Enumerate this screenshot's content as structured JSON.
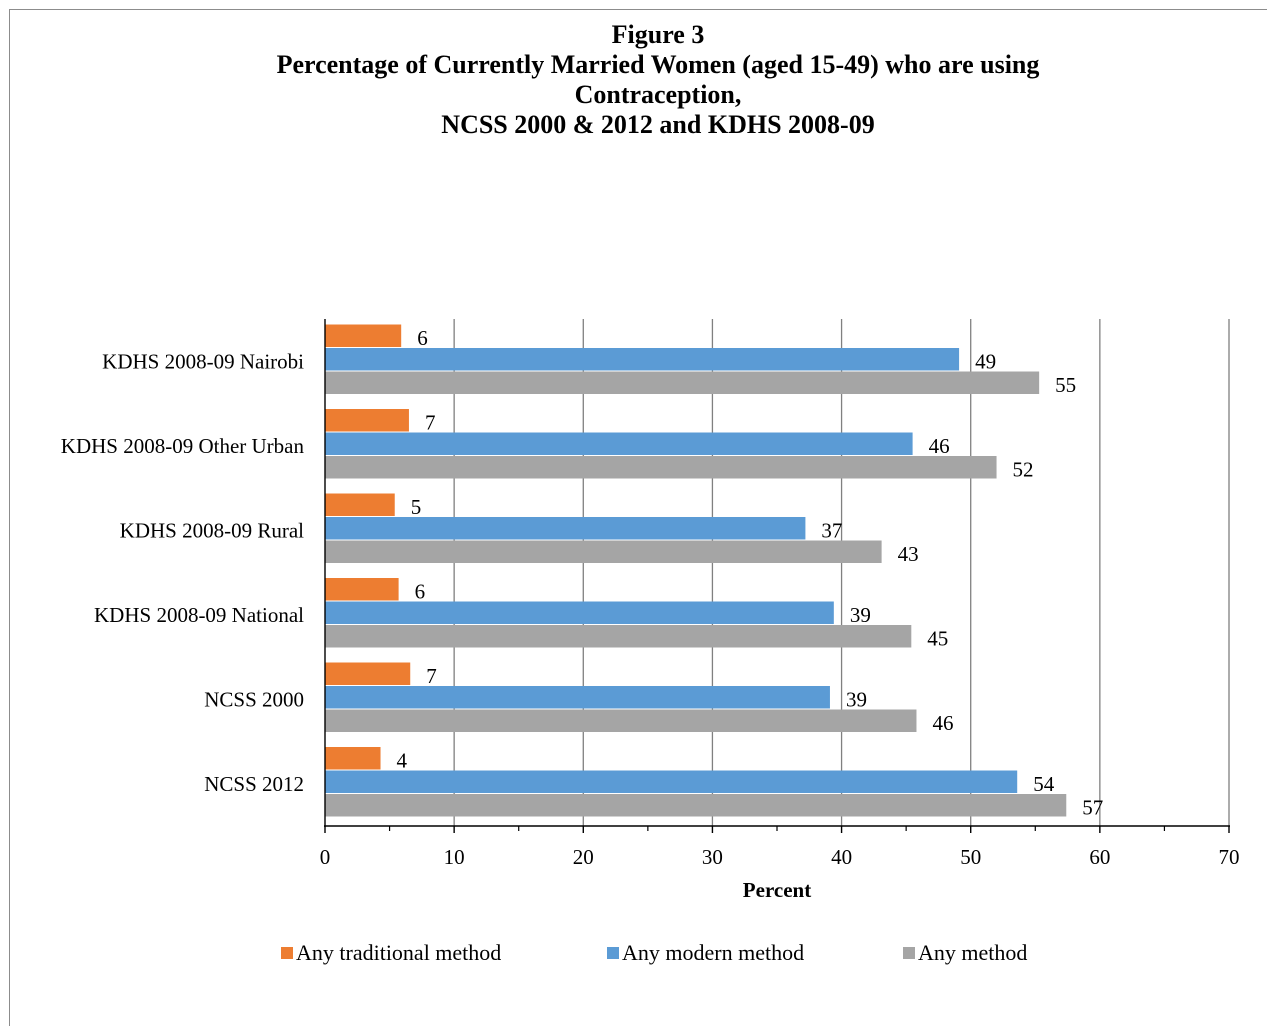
{
  "chart_data": {
    "type": "bar",
    "orientation": "horizontal",
    "title_lines": [
      "Figure 3",
      "Percentage of Currently Married Women (aged 15-49) who are using",
      "Contraception,",
      "NCSS 2000 & 2012 and KDHS 2008-09"
    ],
    "xlabel": "Percent",
    "ylabel": "",
    "xlim": [
      0,
      70
    ],
    "x_ticks": [
      0,
      10,
      20,
      30,
      40,
      50,
      60,
      70
    ],
    "grid": true,
    "legend_position": "bottom",
    "categories": [
      "KDHS 2008-09 Nairobi",
      "KDHS 2008-09 Other Urban",
      "KDHS 2008-09 Rural",
      "KDHS 2008-09 National",
      "NCSS 2000",
      "NCSS 2012"
    ],
    "series": [
      {
        "name": "Any traditional method",
        "color": "#ed7d31",
        "values": [
          6,
          7,
          5,
          6,
          7,
          4
        ],
        "bar_values": [
          5.9,
          6.5,
          5.4,
          5.7,
          6.6,
          4.3
        ]
      },
      {
        "name": "Any modern method",
        "color": "#5b9bd5",
        "values": [
          49,
          46,
          37,
          39,
          39,
          54
        ],
        "bar_values": [
          49.1,
          45.5,
          37.2,
          39.4,
          39.1,
          53.6
        ]
      },
      {
        "name": "Any method",
        "color": "#a5a5a5",
        "values": [
          55,
          52,
          43,
          45,
          46,
          57
        ],
        "bar_values": [
          55.3,
          52.0,
          43.1,
          45.4,
          45.8,
          57.4
        ]
      }
    ]
  }
}
